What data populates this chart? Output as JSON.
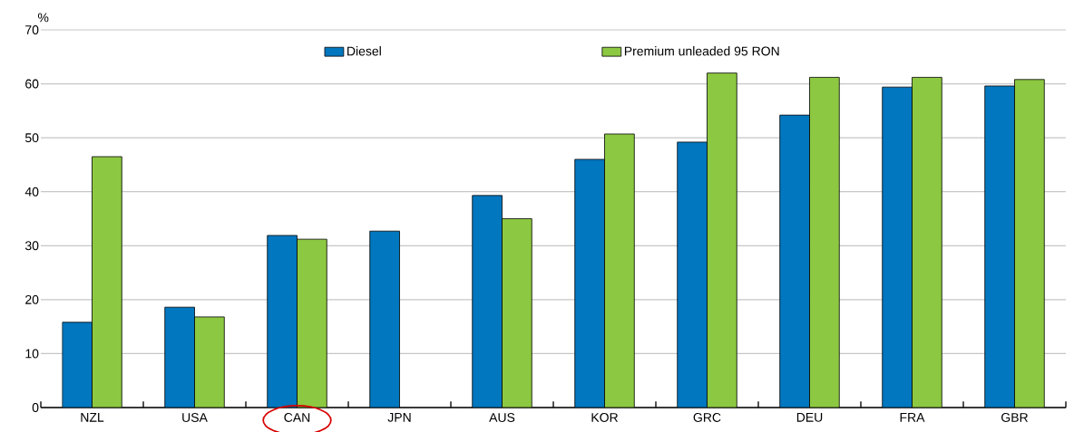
{
  "chart_data": {
    "type": "bar",
    "ylabel": "%",
    "categories": [
      "NZL",
      "USA",
      "CAN",
      "JPN",
      "AUS",
      "KOR",
      "GRC",
      "DEU",
      "FRA",
      "GBR"
    ],
    "series": [
      {
        "name": "Diesel",
        "color": "#0077bf",
        "values": [
          15.8,
          18.6,
          31.9,
          32.7,
          39.3,
          46.0,
          49.2,
          54.2,
          59.4,
          59.6
        ]
      },
      {
        "name": "Premium unleaded 95 RON",
        "color": "#8cc841",
        "values": [
          46.5,
          16.8,
          31.2,
          null,
          35.0,
          50.7,
          62.0,
          61.2,
          61.2,
          60.8
        ]
      }
    ],
    "ylim": [
      0,
      70
    ],
    "yticks": [
      0,
      10,
      20,
      30,
      40,
      50,
      60,
      70
    ],
    "grid": "y",
    "legend": "top"
  }
}
